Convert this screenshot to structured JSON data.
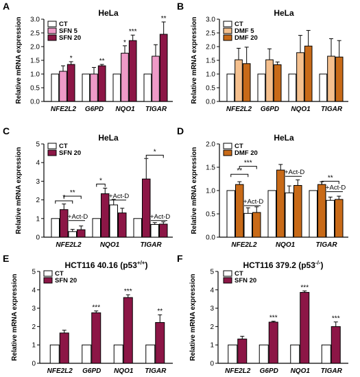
{
  "colors": {
    "ct": "#ffffff",
    "sfn5": "#ee9ac7",
    "sfn20": "#8c1646",
    "dmf5": "#f5c08e",
    "dmf20": "#c86a18",
    "act": "#ffffff"
  },
  "chart_data": [
    {
      "panel": "A",
      "type": "bar",
      "title": "HeLa",
      "ylabel": "Relative mRNA expression",
      "xlabel": "",
      "ylim": [
        0,
        3.0
      ],
      "yticks": [
        0,
        0.5,
        1.0,
        1.5,
        2.0,
        2.5,
        3.0
      ],
      "ytick_labels": [
        "0.0",
        "0.5",
        "1.0",
        "1.5",
        "2.0",
        "2.5",
        "3.0"
      ],
      "categories": [
        "NFE2L2",
        "G6PD",
        "NQO1",
        "TIGAR"
      ],
      "legend_position": "top-left",
      "series": [
        {
          "name": "CT",
          "color": "ct",
          "values": [
            1.0,
            1.0,
            1.0,
            1.0
          ],
          "errors": [
            0,
            0,
            0,
            0
          ]
        },
        {
          "name": "SFN 5",
          "color": "sfn5",
          "values": [
            1.1,
            1.0,
            1.76,
            1.65
          ],
          "errors": [
            0.2,
            0.24,
            0.27,
            0.42
          ]
        },
        {
          "name": "SFN 20",
          "color": "sfn20",
          "values": [
            1.35,
            1.3,
            2.22,
            2.45
          ],
          "errors": [
            0.1,
            0.05,
            0.2,
            0.45
          ]
        }
      ],
      "stars": [
        {
          "cat": 0,
          "series": 2,
          "text": "*"
        },
        {
          "cat": 1,
          "series": 2,
          "text": "**"
        },
        {
          "cat": 2,
          "series": 1,
          "text": "*"
        },
        {
          "cat": 2,
          "series": 2,
          "text": "***"
        },
        {
          "cat": 3,
          "series": 2,
          "text": "**"
        }
      ]
    },
    {
      "panel": "B",
      "type": "bar",
      "title": "HeLa",
      "ylabel": "Relative mRNA expression",
      "xlabel": "",
      "ylim": [
        0,
        3.0
      ],
      "yticks": [
        0,
        0.5,
        1.0,
        1.5,
        2.0,
        2.5,
        3.0
      ],
      "ytick_labels": [
        "0.0",
        "0.5",
        "1.0",
        "1.5",
        "2.0",
        "2.5",
        "3.0"
      ],
      "categories": [
        "NFE2L2",
        "G6PD",
        "NQO1",
        "TIGAR"
      ],
      "legend_position": "top-left",
      "series": [
        {
          "name": "CT",
          "color": "ct",
          "values": [
            1.0,
            1.0,
            1.0,
            1.0
          ],
          "errors": [
            0,
            0,
            0,
            0
          ]
        },
        {
          "name": "DMF 5",
          "color": "dmf5",
          "values": [
            1.52,
            1.52,
            1.78,
            1.65
          ],
          "errors": [
            0.42,
            0.4,
            0.63,
            0.64
          ]
        },
        {
          "name": "DMF 20",
          "color": "dmf20",
          "values": [
            1.38,
            1.34,
            2.02,
            1.62
          ],
          "errors": [
            0.6,
            0.1,
            0.57,
            0.6
          ]
        }
      ],
      "stars": []
    },
    {
      "panel": "C",
      "type": "bar",
      "title": "HeLa",
      "ylabel": "Relative mRNA expression",
      "xlabel": "",
      "ylim": [
        0,
        5
      ],
      "yticks": [
        0,
        1,
        2,
        3,
        4,
        5
      ],
      "ytick_labels": [
        "0",
        "1",
        "2",
        "3",
        "4",
        "5"
      ],
      "categories": [
        "NFE2L2",
        "NQO1",
        "TIGAR"
      ],
      "legend_position": "top-left",
      "series": [
        {
          "name": "CT",
          "color": "ct",
          "values": [
            1.0,
            1.0,
            1.0
          ],
          "errors": [
            0,
            0,
            0
          ]
        },
        {
          "name": "SFN 20",
          "color": "sfn20",
          "values": [
            1.48,
            2.33,
            3.12
          ],
          "errors": [
            0.3,
            0.3,
            1.1
          ]
        },
        {
          "name": "CT +Act-D",
          "color": "act",
          "values": [
            0.3,
            1.73,
            0.68
          ],
          "errors": [
            0.12,
            0.3,
            0.1
          ]
        },
        {
          "name": "SFN 20 +Act-D",
          "color": "sfn20",
          "values": [
            0.4,
            1.3,
            0.7
          ],
          "errors": [
            0.2,
            0.25,
            0.12
          ]
        }
      ],
      "stars": [],
      "act_labels": [
        {
          "cat": 0,
          "text": "+Act-D",
          "y": 1.0
        },
        {
          "cat": 1,
          "text": "+Act-D",
          "y": 2.1
        },
        {
          "cat": 2,
          "text": "+Act-D",
          "y": 1.0
        }
      ],
      "brackets": [
        {
          "cat": 0,
          "from": 0,
          "to": 2,
          "y": 1.95,
          "text": "*"
        },
        {
          "cat": 0,
          "from": 1,
          "to": 3,
          "y": 2.2,
          "text": "**"
        },
        {
          "cat": 1,
          "from": 0,
          "to": 1,
          "y": 2.85,
          "text": "*"
        },
        {
          "cat": 2,
          "from": 1,
          "to": 3,
          "y": 4.4,
          "text": "*"
        }
      ]
    },
    {
      "panel": "D",
      "type": "bar",
      "title": "HeLa",
      "ylabel": "Relative mRNA expression",
      "xlabel": "",
      "ylim": [
        0,
        2.0
      ],
      "yticks": [
        0,
        0.5,
        1.0,
        1.5,
        2.0
      ],
      "ytick_labels": [
        "0.0",
        "0.5",
        "1.0",
        "1.5",
        "2.0"
      ],
      "categories": [
        "NFE2L2",
        "NQO1",
        "TIGAR"
      ],
      "legend_position": "top-left",
      "series": [
        {
          "name": "CT",
          "color": "ct",
          "values": [
            1.0,
            1.0,
            1.0
          ],
          "errors": [
            0,
            0,
            0
          ]
        },
        {
          "name": "DMF 20",
          "color": "dmf20",
          "values": [
            1.13,
            1.44,
            1.13
          ],
          "errors": [
            0.06,
            0.12,
            0.06
          ]
        },
        {
          "name": "CT +Act-D",
          "color": "act",
          "values": [
            0.51,
            0.95,
            0.79
          ],
          "errors": [
            0.12,
            0.15,
            0.07
          ]
        },
        {
          "name": "DMF 20 +Act-D",
          "color": "dmf20",
          "values": [
            0.53,
            1.11,
            0.81
          ],
          "errors": [
            0.12,
            0.12,
            0.07
          ]
        }
      ],
      "stars": [],
      "act_labels": [
        {
          "cat": 0,
          "text": "+Act-D",
          "y": 0.72
        },
        {
          "cat": 1,
          "text": "+Act-D",
          "y": 1.35
        },
        {
          "cat": 2,
          "text": "+Act-D",
          "y": 1.02
        }
      ],
      "brackets": [
        {
          "cat": 0,
          "from": 0,
          "to": 2,
          "y": 1.35,
          "text": "**"
        },
        {
          "cat": 0,
          "from": 1,
          "to": 3,
          "y": 1.52,
          "text": "***"
        },
        {
          "cat": 2,
          "from": 1,
          "to": 3,
          "y": 1.2,
          "text": "**"
        }
      ]
    },
    {
      "panel": "E",
      "type": "bar",
      "title": "HCT116 40.16 (p53",
      "title_sup": "+/+",
      "title_end": ")",
      "ylabel": "Relative mRNA expression",
      "xlabel": "",
      "ylim": [
        0,
        5
      ],
      "yticks": [
        0,
        1,
        2,
        3,
        4,
        5
      ],
      "ytick_labels": [
        "0",
        "1",
        "2",
        "3",
        "4",
        "5"
      ],
      "categories": [
        "NFE2L2",
        "G6PD",
        "NQO1",
        "TIGAR"
      ],
      "legend_position": "top-left",
      "series": [
        {
          "name": "CT",
          "color": "ct",
          "values": [
            1.0,
            1.0,
            1.0,
            1.0
          ],
          "errors": [
            0,
            0,
            0,
            0
          ]
        },
        {
          "name": "SFN 20",
          "color": "sfn20",
          "values": [
            1.65,
            2.75,
            3.58,
            2.22
          ],
          "errors": [
            0.15,
            0.1,
            0.15,
            0.42
          ]
        }
      ],
      "stars": [
        {
          "cat": 1,
          "series": 1,
          "text": "***"
        },
        {
          "cat": 2,
          "series": 1,
          "text": "***"
        },
        {
          "cat": 3,
          "series": 1,
          "text": "**"
        }
      ]
    },
    {
      "panel": "F",
      "type": "bar",
      "title": "HCT116 379.2 (p53",
      "title_sup": "-/-",
      "title_end": ")",
      "ylabel": "Relative mRNA expression",
      "xlabel": "",
      "ylim": [
        0,
        5
      ],
      "yticks": [
        0,
        1,
        2,
        3,
        4,
        5
      ],
      "ytick_labels": [
        "0",
        "1",
        "2",
        "3",
        "4",
        "5"
      ],
      "categories": [
        "NFE2L2",
        "G6PD",
        "NQO1",
        "TIGAR"
      ],
      "legend_position": "top-left",
      "series": [
        {
          "name": "CT",
          "color": "ct",
          "values": [
            1.0,
            1.0,
            1.0,
            1.0
          ],
          "errors": [
            0,
            0,
            0,
            0
          ]
        },
        {
          "name": "SFN 20",
          "color": "sfn20",
          "values": [
            1.32,
            2.24,
            3.86,
            2.0
          ],
          "errors": [
            0.15,
            0.05,
            0.08,
            0.25
          ]
        }
      ],
      "stars": [
        {
          "cat": 1,
          "series": 1,
          "text": "***"
        },
        {
          "cat": 2,
          "series": 1,
          "text": "***"
        },
        {
          "cat": 3,
          "series": 1,
          "text": "***"
        }
      ]
    }
  ]
}
